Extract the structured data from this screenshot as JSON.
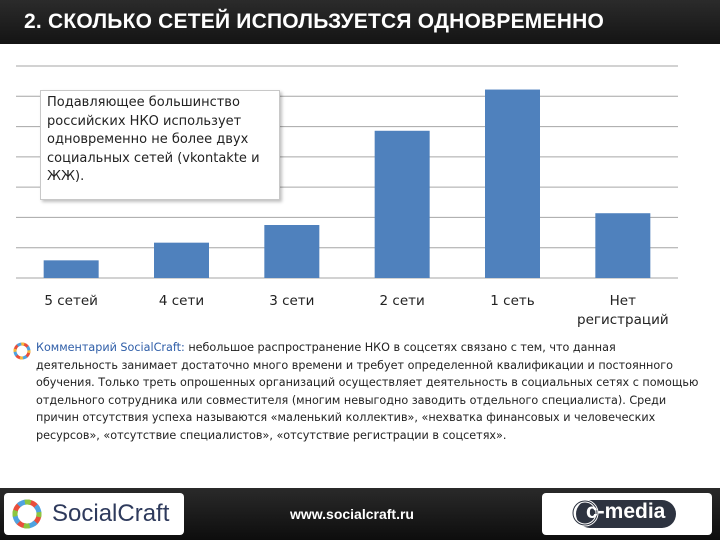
{
  "header": {
    "title": "2. СКОЛЬКО СЕТЕЙ ИСПОЛЬЗУЕТСЯ ОДНОВРЕМЕННО"
  },
  "callout": {
    "text": "Подавляющее большинство российских НКО использует одновременно не более двух социальных сетей (vkontakte и ЖЖ)."
  },
  "chart_data": {
    "type": "bar",
    "categories": [
      "5 сетей",
      "4 сети",
      "3 сети",
      "2 сети",
      "1 сеть",
      "Нет регистраций"
    ],
    "values": [
      3,
      6,
      9,
      25,
      32,
      11
    ],
    "ylim": [
      0,
      36
    ],
    "gridlines": 7,
    "bar_color": "#4f81bd",
    "grid_color": "#a6a6a6",
    "grid": true,
    "legend": false,
    "title": "",
    "xlabel": "",
    "ylabel": ""
  },
  "comment": {
    "lead": "Комментарий SocialCraft:",
    "body": " небольшое распространение НКО в соцсетях связано с тем, что данная деятельность занимает достаточно много времени и требует определенной квалификации и постоянного обучения. Только треть опрошенных организаций осуществляет деятельность в социальных сетях с помощью отдельного сотрудника или совместителя (многим невыгодно заводить отдельного специалиста). Среди причин отсутствия успеха называются «маленький коллектив», «нехватка финансовых и человеческих ресурсов», «отсутствие специалистов», «отсутствие регистрации в соцсетях»."
  },
  "footer": {
    "left_logo": "SocialCraft",
    "url": "www.socialcraft.ru",
    "right_logo": "c-media"
  },
  "icons": {
    "comment_icon": "socialcraft-ring-icon"
  }
}
